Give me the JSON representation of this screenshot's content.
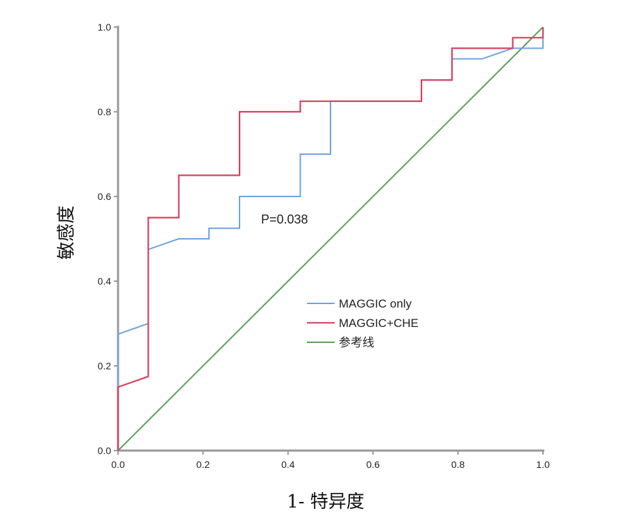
{
  "chart_data": {
    "type": "line",
    "title": "",
    "xlabel": "1- 特异度",
    "ylabel": "敏感度",
    "xlim": [
      0,
      1
    ],
    "ylim": [
      0,
      1
    ],
    "x_ticks": [
      "0.0",
      "0.2",
      "0.4",
      "0.6",
      "0.8",
      "1.0"
    ],
    "y_ticks": [
      "0.0",
      "0.2",
      "0.4",
      "0.6",
      "0.8",
      "1.0"
    ],
    "x_tick_values": [
      0,
      0.2,
      0.4,
      0.6,
      0.8,
      1.0
    ],
    "y_tick_values": [
      0,
      0.2,
      0.4,
      0.6,
      0.8,
      1.0
    ],
    "grid": false,
    "legend_position": "center-right",
    "annotation": "P=0.038",
    "series": [
      {
        "name": "MAGGIC only",
        "color": "#6fa3e0",
        "x": [
          0,
          0,
          0.071,
          0.071,
          0.143,
          0.214,
          0.214,
          0.286,
          0.286,
          0.429,
          0.429,
          0.5,
          0.5,
          0.714,
          0.714,
          0.786,
          0.786,
          0.857,
          0.929,
          1.0,
          1.0
        ],
        "y": [
          0,
          0.275,
          0.3,
          0.475,
          0.5,
          0.5,
          0.525,
          0.525,
          0.6,
          0.6,
          0.7,
          0.7,
          0.825,
          0.825,
          0.875,
          0.875,
          0.925,
          0.925,
          0.95,
          0.95,
          1.0
        ]
      },
      {
        "name": "MAGGIC+CHE",
        "color": "#d9405e",
        "x": [
          0,
          0,
          0.071,
          0.071,
          0.143,
          0.143,
          0.286,
          0.286,
          0.429,
          0.429,
          0.714,
          0.714,
          0.786,
          0.786,
          0.929,
          0.929,
          1.0,
          1.0
        ],
        "y": [
          0,
          0.15,
          0.175,
          0.55,
          0.55,
          0.65,
          0.65,
          0.8,
          0.8,
          0.825,
          0.825,
          0.875,
          0.875,
          0.95,
          0.95,
          0.975,
          0.975,
          1.0
        ]
      },
      {
        "name": "参考线",
        "color": "#5aa05a",
        "x": [
          0,
          1
        ],
        "y": [
          0,
          1
        ]
      }
    ]
  }
}
